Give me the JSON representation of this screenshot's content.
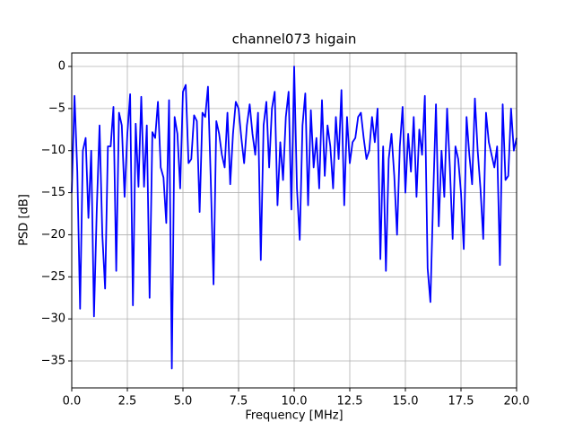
{
  "chart_data": {
    "type": "line",
    "title": "channel073 higain",
    "x_label": "Frequency [MHz]",
    "y_label": "PSD [dB]",
    "x": [
      0,
      0.125,
      0.25,
      0.375,
      0.5,
      0.625,
      0.75,
      0.875,
      1,
      1.125,
      1.25,
      1.375,
      1.5,
      1.625,
      1.75,
      1.875,
      2,
      2.125,
      2.25,
      2.375,
      2.5,
      2.625,
      2.75,
      2.875,
      3,
      3.125,
      3.25,
      3.375,
      3.5,
      3.625,
      3.75,
      3.875,
      4,
      4.125,
      4.25,
      4.375,
      4.5,
      4.625,
      4.75,
      4.875,
      5,
      5.125,
      5.25,
      5.375,
      5.5,
      5.625,
      5.75,
      5.875,
      6,
      6.125,
      6.25,
      6.375,
      6.5,
      6.625,
      6.75,
      6.875,
      7,
      7.125,
      7.25,
      7.375,
      7.5,
      7.625,
      7.75,
      7.875,
      8,
      8.125,
      8.25,
      8.375,
      8.5,
      8.625,
      8.75,
      8.875,
      9,
      9.125,
      9.25,
      9.375,
      9.5,
      9.625,
      9.75,
      9.875,
      10,
      10.125,
      10.25,
      10.375,
      10.5,
      10.625,
      10.75,
      10.875,
      11,
      11.125,
      11.25,
      11.375,
      11.5,
      11.625,
      11.75,
      11.875,
      12,
      12.125,
      12.25,
      12.375,
      12.5,
      12.625,
      12.75,
      12.875,
      13,
      13.125,
      13.25,
      13.375,
      13.5,
      13.625,
      13.75,
      13.875,
      14,
      14.125,
      14.25,
      14.375,
      14.5,
      14.625,
      14.75,
      14.875,
      15,
      15.125,
      15.25,
      15.375,
      15.5,
      15.625,
      15.75,
      15.875,
      16,
      16.125,
      16.25,
      16.375,
      16.5,
      16.625,
      16.75,
      16.875,
      17,
      17.125,
      17.25,
      17.375,
      17.5,
      17.625,
      17.75,
      17.875,
      18,
      18.125,
      18.25,
      18.375,
      18.5,
      18.625,
      18.75,
      18.875,
      19,
      19.125,
      19.25,
      19.375,
      19.5,
      19.625,
      19.75,
      19.875,
      20
    ],
    "values": [
      -15,
      -3.5,
      -12.5,
      -28.8,
      -10,
      -8.5,
      -18,
      -10,
      -29.7,
      -17,
      -7,
      -20,
      -26.4,
      -9.5,
      -9.5,
      -4.8,
      -24.3,
      -5.5,
      -7,
      -15.5,
      -8,
      -3.3,
      -28.4,
      -6.8,
      -14.3,
      -3.6,
      -14.3,
      -7,
      -27.5,
      -7.8,
      -8.5,
      -4.2,
      -12,
      -13.2,
      -18.6,
      -4,
      -35.9,
      -6,
      -8,
      -14.5,
      -3,
      -2.2,
      -11.5,
      -11,
      -5.8,
      -6.5,
      -17.3,
      -5.5,
      -6,
      -2.4,
      -13.5,
      -25.9,
      -6.5,
      -8,
      -10.5,
      -12,
      -5.5,
      -14,
      -8,
      -4.2,
      -5,
      -8.5,
      -11.5,
      -7,
      -4.5,
      -8,
      -10.5,
      -5.5,
      -23,
      -7,
      -4.2,
      -12,
      -5,
      -3,
      -16.5,
      -9,
      -13.5,
      -6,
      -3,
      -17,
      0,
      -14.5,
      -20.6,
      -7,
      -3.2,
      -16.5,
      -5.2,
      -12,
      -8.5,
      -14.5,
      -4,
      -13,
      -7,
      -9.5,
      -14.5,
      -6,
      -11,
      -2.8,
      -16.5,
      -6,
      -11.5,
      -9,
      -8.5,
      -6,
      -5.5,
      -8.5,
      -11,
      -10,
      -6,
      -9,
      -5,
      -22.9,
      -9.5,
      -24.3,
      -11,
      -8,
      -13,
      -20,
      -9.5,
      -4.8,
      -15,
      -8,
      -12.5,
      -6,
      -15.5,
      -7.5,
      -10.5,
      -3.5,
      -24,
      -28,
      -15.5,
      -4.5,
      -19,
      -10,
      -15.5,
      -5,
      -12,
      -20.5,
      -9.5,
      -11,
      -15,
      -21.7,
      -6,
      -10.5,
      -14,
      -3.8,
      -10,
      -14.5,
      -20.5,
      -5.5,
      -9,
      -10.5,
      -12,
      -9.5,
      -23.6,
      -4.5,
      -13.5,
      -13,
      -5,
      -10,
      -8.5
    ],
    "color": "#0000ff",
    "xlim": [
      0,
      20
    ],
    "ylim": [
      -38.2,
      1.6
    ],
    "xticks": [
      {
        "value": 0,
        "label": "0.0"
      },
      2.5,
      {
        "value": 5,
        "label": "5.0"
      },
      7.5,
      {
        "value": 10,
        "label": "10.0"
      },
      12.5,
      {
        "value": 15,
        "label": "15.0"
      },
      17.5,
      {
        "value": 20,
        "label": "20.0"
      }
    ],
    "yticks": [
      0,
      {
        "value": -5,
        "label": "−5"
      },
      {
        "value": -10,
        "label": "−10"
      },
      {
        "value": -15,
        "label": "−15"
      },
      {
        "value": -20,
        "label": "−20"
      },
      {
        "value": -25,
        "label": "−25"
      },
      {
        "value": -30,
        "label": "−30"
      },
      {
        "value": -35,
        "label": "−35"
      }
    ],
    "grid": true
  }
}
